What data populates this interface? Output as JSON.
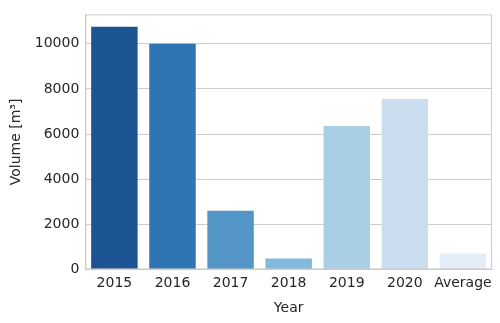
{
  "chart_data": {
    "type": "bar",
    "x_label": "Year",
    "y_label": "Volume [m³]",
    "categories": [
      "2015",
      "2016",
      "2017",
      "2018",
      "2019",
      "2020",
      "Average"
    ],
    "values": [
      10750,
      10000,
      2600,
      480,
      6350,
      7550,
      700
    ],
    "colors": [
      "#1b5393",
      "#2f74b3",
      "#5495c7",
      "#83b9db",
      "#a9cfe5",
      "#cadef0",
      "#e4eef8"
    ],
    "ylim": [
      0,
      11300
    ],
    "yticks": [
      0,
      2000,
      4000,
      6000,
      8000,
      10000
    ],
    "grid": true
  }
}
